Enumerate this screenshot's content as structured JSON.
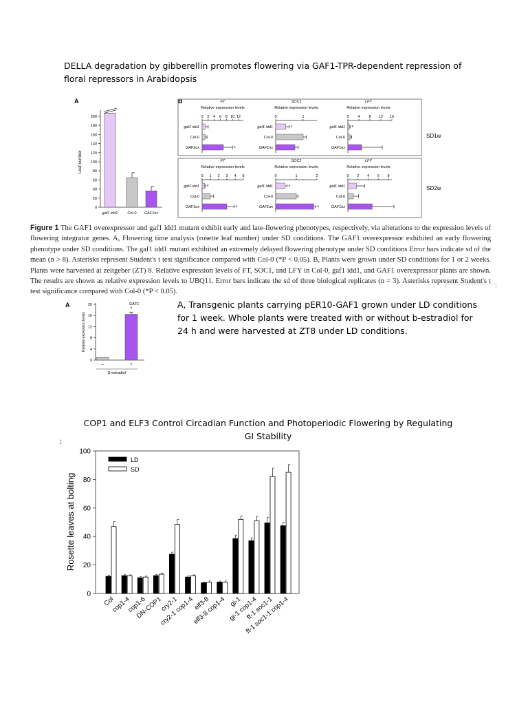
{
  "title1": "DELLA degradation by gibberellin promotes flowering via GAF1-TPR-dependent repression of floral repressors in Arabidopsis",
  "caption": {
    "label": "Figure 1",
    "text": " The GAF1 overexpressor and gaf1 idd1 mutant exhibit early and late-flowering phenotypes, respectively, via alterations to the expression levels of flowering integrator genes. A, Flowering time analysis (rosette leaf number) under SD conditions. The GAF1 overexpressor exhibited an early flowering phenotype under SD conditions. The gaf1 idd1 mutant exhibited an extremely delayed flowering phenotype under SD conditions Error bars indicate sd of the mean (n > 8). Asterisks represent Student's t test significance compared with Col-0 (*P < 0.05). B, Plants were grown under SD conditions for 1 or 2 weeks. Plants were harvested at zeitgeber (ZT) 8. Relative expression levels of FT, SOC1, and LFY in Col-0, gaf1 idd1, and GAF1 overexpressor plants are shown. The results are shown as relative expression levels to UBQ11. Error bars indicate the sd of three biological replicates (n = 3). Asterisks represent Student's t test significance compared with Col-0 (*P < 0.05)."
  },
  "desc": "A, Transgenic plants carrying pER10-GAF1 grown under LD conditions for 1 week. Whole plants were treated with or without b-estradiol for 24 h and were harvested at ZT8 under LD conditions.",
  "title2": "COP1 and ELF3 Control Circadian Function and Photoperiodic Flowering by Regulating GI Stability",
  "stray": ";",
  "colors": {
    "gaf1_idd1": "#e6c8f8",
    "col0": "#c8c8c8",
    "gaf1ox": "#a855f0",
    "ld": "#000000",
    "sd": "#ffffff"
  },
  "chart_data": [
    {
      "id": "fig1A",
      "panel_label": "A",
      "type": "bar",
      "ylabel": "Leaf number",
      "categories": [
        "gaf1 idd1",
        "Col-0",
        "GAF1ox"
      ],
      "values": [
        210,
        65,
        36
      ],
      "errors": [
        0,
        11,
        10
      ],
      "ylim": [
        0,
        200
      ],
      "yticks": [
        0,
        20,
        40,
        60,
        80,
        100,
        120,
        140,
        160,
        180,
        200
      ],
      "broken_axis_bar": "gaf1 idd1"
    },
    {
      "id": "fig1B",
      "panel_label": "B",
      "type": "bar",
      "orientation": "horizontal",
      "xlabel": "Relative expression levels",
      "categories": [
        "gaf1 idd1",
        "Col-0",
        "GAF1ox"
      ],
      "groups": [
        {
          "condition": "SD1w",
          "panels": [
            {
              "gene": "FT",
              "xticks": [
                "0",
                "2",
                "4",
                "6",
                "8",
                "10",
                "12"
              ],
              "xlim": [
                0,
                12
              ],
              "values": [
                1,
                1,
                7
              ],
              "errors": [
                1,
                0.6,
                3
              ],
              "stars": [
                false,
                false,
                true
              ]
            },
            {
              "gene": "SOC1",
              "xticks": [
                "0",
                "1"
              ],
              "xlim": [
                0,
                1
              ],
              "values": [
                0.37,
                1.0,
                0.7
              ],
              "errors": [
                0.12,
                0.12,
                0.12
              ],
              "stars": [
                true,
                false,
                false
              ]
            },
            {
              "gene": "LFY",
              "xticks": [
                "0",
                "4",
                "8",
                "12",
                "16"
              ],
              "xlim": [
                0,
                16
              ],
              "values": [
                0.5,
                0.8,
                5
              ],
              "errors": [
                0.3,
                0.6,
                7.5
              ],
              "stars": [
                true,
                false,
                false
              ]
            }
          ]
        },
        {
          "condition": "SD2w",
          "panels": [
            {
              "gene": "FT",
              "xticks": [
                "0",
                "1",
                "2",
                "3",
                "4",
                "5"
              ],
              "xlim": [
                0,
                5
              ],
              "values": [
                0.3,
                1,
                3
              ],
              "errors": [
                0.1,
                0.4,
                0.9
              ],
              "stars": [
                true,
                false,
                true
              ]
            },
            {
              "gene": "SOC1",
              "xticks": [
                "0",
                "1",
                "2"
              ],
              "xlim": [
                0,
                2
              ],
              "values": [
                0.45,
                1.0,
                1.85
              ],
              "errors": [
                0.1,
                0.08,
                0.1
              ],
              "stars": [
                true,
                false,
                true
              ]
            },
            {
              "gene": "LFY",
              "xticks": [
                "0",
                "2",
                "4",
                "6",
                "8"
              ],
              "xlim": [
                0,
                8
              ],
              "values": [
                1.7,
                1.1,
                4.8
              ],
              "errors": [
                1.6,
                1.0,
                4.3
              ],
              "stars": [
                false,
                false,
                false
              ]
            }
          ]
        }
      ]
    },
    {
      "id": "gaf1_induction",
      "panel_label": "A",
      "type": "bar",
      "title": "GAF1",
      "ylabel": "Relative expression levels",
      "xlabel": "β-estradiol",
      "categories": [
        "–",
        "+"
      ],
      "values": [
        0.9,
        16.4
      ],
      "errors": [
        0,
        0.8
      ],
      "stars": [
        false,
        true
      ],
      "ylim": [
        0,
        20
      ],
      "yticks": [
        0,
        4,
        8,
        12,
        16,
        20
      ]
    },
    {
      "id": "rosette",
      "type": "bar",
      "ylabel": "Rosette leaves at bolting",
      "ylim": [
        0,
        100
      ],
      "yticks": [
        0,
        20,
        40,
        60,
        80,
        100
      ],
      "categories": [
        "Col",
        "cop1-4",
        "cop1-6",
        "DN-COP1",
        "cry2-1",
        "cry2-1 cop1-4",
        "elf3-8",
        "elf3-8 cop1-4",
        "gi-1",
        "gi-1 cop1-4",
        "ft-1 soc1-1",
        "ft-1 soc1-1 cop1-4"
      ],
      "series": [
        {
          "name": "LD",
          "values": [
            12,
            12.5,
            11,
            12.5,
            27.5,
            11.5,
            7.5,
            8,
            38.5,
            37,
            49.5,
            47.5
          ],
          "errors": [
            0.8,
            0.7,
            0.8,
            0.8,
            1.5,
            0.8,
            0.6,
            0.7,
            2.5,
            2,
            4,
            2.5
          ]
        },
        {
          "name": "SD",
          "values": [
            47,
            12.5,
            11.5,
            13.5,
            48.5,
            12.5,
            8,
            8,
            52,
            51,
            82,
            85
          ],
          "errors": [
            3.5,
            0.6,
            0.7,
            0.9,
            3.5,
            0.6,
            0.8,
            0.8,
            2.5,
            3.2,
            6,
            5.5
          ]
        }
      ]
    }
  ]
}
